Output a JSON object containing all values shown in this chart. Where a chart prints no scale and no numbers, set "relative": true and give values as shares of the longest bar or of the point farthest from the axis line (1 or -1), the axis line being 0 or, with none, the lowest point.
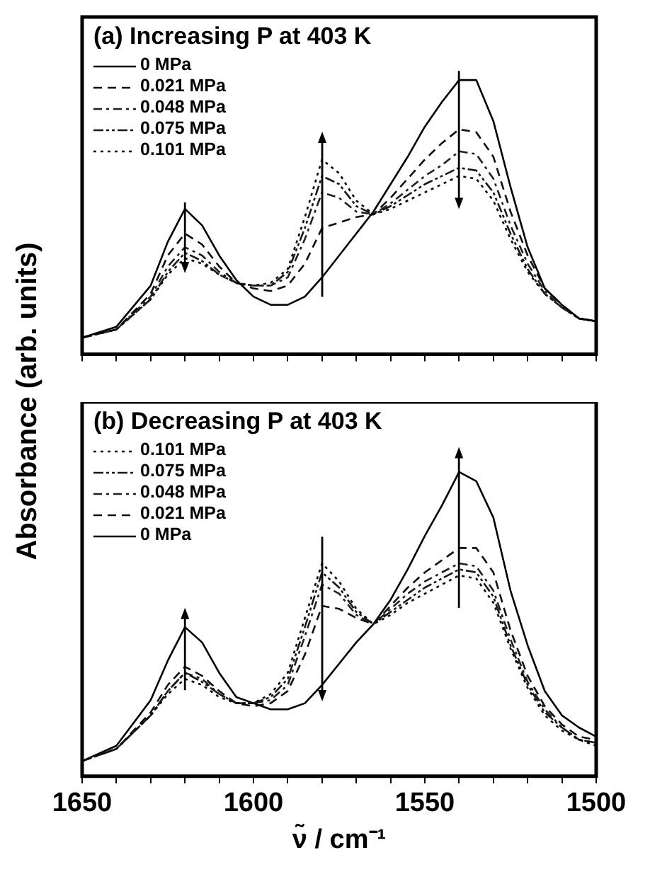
{
  "chart_data": [
    {
      "type": "line",
      "title": "(a) Increasing P at 403 K",
      "ylabel": "Absorbance (arb. units)",
      "relative": true,
      "legend": "top left",
      "marker": "none",
      "tick_labels": false,
      "x": [
        1650,
        1640,
        1630,
        1625,
        1620,
        1615,
        1610,
        1605,
        1600,
        1595,
        1590,
        1585,
        1580,
        1575,
        1570,
        1565,
        1560,
        1555,
        1550,
        1545,
        1540,
        1535,
        1530,
        1525,
        1520,
        1515,
        1510,
        1505,
        1500
      ],
      "xlim": [
        1650,
        1500
      ],
      "xticks": [
        {
          "value": 1650,
          "label": null
        },
        {
          "value": 1640,
          "label": null
        },
        {
          "value": 1630,
          "label": null
        },
        {
          "value": 1620,
          "label": null
        },
        {
          "value": 1610,
          "label": null
        },
        {
          "value": 1600,
          "label": null
        },
        {
          "value": 1590,
          "label": null
        },
        {
          "value": 1580,
          "label": null
        },
        {
          "value": 1570,
          "label": null
        },
        {
          "value": 1560,
          "label": null
        },
        {
          "value": 1550,
          "label": null
        },
        {
          "value": 1540,
          "label": null
        },
        {
          "value": 1530,
          "label": null
        },
        {
          "value": 1520,
          "label": null
        },
        {
          "value": 1510,
          "label": null
        },
        {
          "value": 1500,
          "label": null
        }
      ],
      "series": [
        {
          "name": "0 MPa",
          "color": "#000000",
          "line_style": "solid",
          "values": [
            0.06,
            0.1,
            0.25,
            0.41,
            0.53,
            0.47,
            0.36,
            0.27,
            0.21,
            0.18,
            0.18,
            0.21,
            0.28,
            0.36,
            0.44,
            0.52,
            0.62,
            0.72,
            0.83,
            0.92,
            1.0,
            1.0,
            0.85,
            0.61,
            0.39,
            0.24,
            0.18,
            0.13,
            0.12
          ]
        },
        {
          "name": "0.021 MPa",
          "color": "#101010",
          "line_style": "dashed",
          "values": [
            0.06,
            0.09,
            0.22,
            0.36,
            0.44,
            0.4,
            0.32,
            0.26,
            0.24,
            0.23,
            0.25,
            0.33,
            0.46,
            0.48,
            0.5,
            0.51,
            0.57,
            0.64,
            0.71,
            0.77,
            0.82,
            0.81,
            0.72,
            0.52,
            0.36,
            0.24,
            0.18,
            0.13,
            0.12
          ]
        },
        {
          "name": "0.048 MPa",
          "color": "#202020",
          "line_style": "dashdot",
          "values": [
            0.06,
            0.09,
            0.21,
            0.32,
            0.39,
            0.36,
            0.3,
            0.26,
            0.25,
            0.25,
            0.28,
            0.42,
            0.59,
            0.57,
            0.52,
            0.51,
            0.55,
            0.6,
            0.65,
            0.69,
            0.74,
            0.73,
            0.64,
            0.47,
            0.33,
            0.23,
            0.17,
            0.13,
            0.12
          ]
        },
        {
          "name": "0.075 MPa",
          "color": "#181818",
          "line_style": "dashdotdot",
          "values": [
            0.06,
            0.09,
            0.2,
            0.3,
            0.37,
            0.34,
            0.29,
            0.26,
            0.25,
            0.25,
            0.3,
            0.46,
            0.65,
            0.62,
            0.54,
            0.51,
            0.54,
            0.58,
            0.62,
            0.65,
            0.68,
            0.67,
            0.59,
            0.44,
            0.31,
            0.22,
            0.17,
            0.13,
            0.12
          ]
        },
        {
          "name": "0.101 MPa",
          "color": "#080808",
          "line_style": "dotted",
          "values": [
            0.06,
            0.09,
            0.2,
            0.29,
            0.35,
            0.33,
            0.29,
            0.26,
            0.25,
            0.26,
            0.31,
            0.5,
            0.71,
            0.66,
            0.56,
            0.51,
            0.53,
            0.56,
            0.59,
            0.62,
            0.65,
            0.64,
            0.56,
            0.42,
            0.3,
            0.22,
            0.17,
            0.13,
            0.12
          ]
        }
      ]
    },
    {
      "type": "line",
      "title": "(b) Decreasing P at 403 K",
      "xlabel": "ν̃ / cm⁻¹",
      "relative": true,
      "legend": "top left",
      "marker": "none",
      "tick_labels": "x",
      "x": [
        1650,
        1640,
        1630,
        1625,
        1620,
        1615,
        1610,
        1605,
        1600,
        1595,
        1590,
        1585,
        1580,
        1575,
        1570,
        1565,
        1560,
        1555,
        1550,
        1545,
        1540,
        1535,
        1530,
        1525,
        1520,
        1515,
        1510,
        1505,
        1500
      ],
      "xlim": [
        1650,
        1500
      ],
      "xticks": [
        1650,
        {
          "value": 1640,
          "label": null
        },
        {
          "value": 1630,
          "label": null
        },
        {
          "value": 1620,
          "label": null
        },
        {
          "value": 1610,
          "label": null
        },
        1600,
        {
          "value": 1590,
          "label": null
        },
        {
          "value": 1580,
          "label": null
        },
        {
          "value": 1570,
          "label": null
        },
        {
          "value": 1560,
          "label": null
        },
        1550,
        {
          "value": 1540,
          "label": null
        },
        {
          "value": 1530,
          "label": null
        },
        {
          "value": 1520,
          "label": null
        },
        {
          "value": 1510,
          "label": null
        },
        1500
      ],
      "series": [
        {
          "name": "0.101 MPa",
          "color": "#080808",
          "line_style": "dotted",
          "values": [
            0.05,
            0.09,
            0.2,
            0.27,
            0.32,
            0.3,
            0.26,
            0.24,
            0.24,
            0.27,
            0.34,
            0.52,
            0.7,
            0.64,
            0.55,
            0.5,
            0.53,
            0.57,
            0.6,
            0.63,
            0.66,
            0.65,
            0.57,
            0.42,
            0.29,
            0.2,
            0.15,
            0.12,
            0.1
          ]
        },
        {
          "name": "0.075 MPa",
          "color": "#181818",
          "line_style": "dashdotdot",
          "values": [
            0.05,
            0.09,
            0.2,
            0.28,
            0.34,
            0.31,
            0.27,
            0.24,
            0.24,
            0.26,
            0.32,
            0.49,
            0.67,
            0.62,
            0.54,
            0.5,
            0.54,
            0.58,
            0.62,
            0.65,
            0.68,
            0.67,
            0.59,
            0.43,
            0.3,
            0.21,
            0.16,
            0.12,
            0.11
          ]
        },
        {
          "name": "0.048 MPa",
          "color": "#202020",
          "line_style": "dashdot",
          "values": [
            0.05,
            0.09,
            0.2,
            0.28,
            0.34,
            0.32,
            0.27,
            0.24,
            0.24,
            0.25,
            0.3,
            0.46,
            0.63,
            0.6,
            0.53,
            0.5,
            0.55,
            0.6,
            0.64,
            0.67,
            0.7,
            0.69,
            0.61,
            0.45,
            0.31,
            0.22,
            0.16,
            0.12,
            0.11
          ]
        },
        {
          "name": "0.021 MPa",
          "color": "#101010",
          "line_style": "dashed",
          "values": [
            0.05,
            0.09,
            0.21,
            0.3,
            0.36,
            0.33,
            0.28,
            0.24,
            0.23,
            0.24,
            0.28,
            0.4,
            0.56,
            0.55,
            0.52,
            0.5,
            0.56,
            0.62,
            0.67,
            0.71,
            0.75,
            0.75,
            0.67,
            0.48,
            0.33,
            0.23,
            0.17,
            0.13,
            0.12
          ]
        },
        {
          "name": "0 MPa",
          "color": "#000000",
          "line_style": "solid",
          "values": [
            0.05,
            0.1,
            0.25,
            0.38,
            0.49,
            0.44,
            0.34,
            0.26,
            0.24,
            0.22,
            0.22,
            0.24,
            0.3,
            0.37,
            0.44,
            0.5,
            0.58,
            0.68,
            0.79,
            0.89,
            1.0,
            0.97,
            0.85,
            0.61,
            0.43,
            0.28,
            0.2,
            0.16,
            0.13
          ]
        }
      ]
    }
  ]
}
